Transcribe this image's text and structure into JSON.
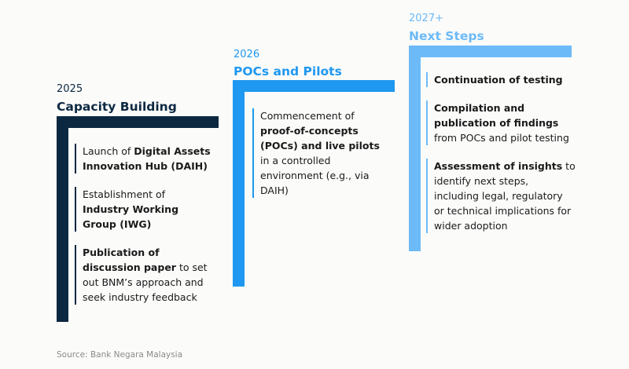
{
  "colors": {
    "c2025": "#0c2841",
    "c2026": "#1e98f0",
    "c2027": "#6cbaf7"
  },
  "columns": [
    {
      "year": "2025",
      "title": "Capacity Building",
      "items": [
        [
          {
            "t": "Launch of ",
            "b": false
          },
          {
            "t": "Digital Assets Innovation Hub (DAIH)",
            "b": true
          }
        ],
        [
          {
            "t": "Establishment of ",
            "b": false
          },
          {
            "t": "Industry Working Group (IWG)",
            "b": true
          }
        ],
        [
          {
            "t": "Publication of discussion paper",
            "b": true
          },
          {
            "t": " to set out BNM’s approach and seek industry feedback",
            "b": false
          }
        ]
      ]
    },
    {
      "year": "2026",
      "title": "POCs and Pilots",
      "items": [
        [
          {
            "t": "Commencement of ",
            "b": false
          },
          {
            "t": "proof-of-concepts (POCs) and live pilots",
            "b": true
          },
          {
            "t": " in a controlled environment (e.g., via DAIH)",
            "b": false
          }
        ]
      ]
    },
    {
      "year": "2027+",
      "title": "Next Steps",
      "items": [
        [
          {
            "t": "Continuation of testing",
            "b": true
          }
        ],
        [
          {
            "t": "Compilation and publication of findings",
            "b": true
          },
          {
            "t": " from POCs and pilot testing",
            "b": false
          }
        ],
        [
          {
            "t": "Assessment of insights",
            "b": true
          },
          {
            "t": " to identify next steps, including legal, regulatory or technical implications for wider adoption",
            "b": false
          }
        ]
      ]
    }
  ],
  "source": "Source: Bank Negara Malaysia"
}
